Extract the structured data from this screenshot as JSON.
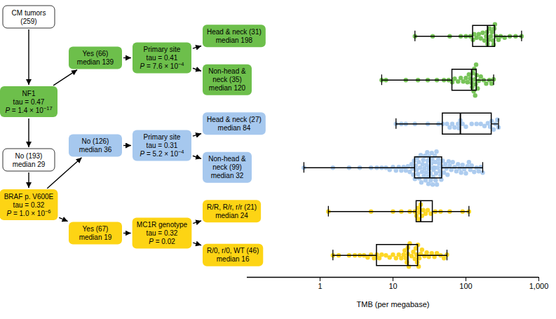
{
  "chart_data": {
    "type": "box",
    "xlabel": "TMB (per megabase)",
    "log": "x",
    "xlim": [
      0.1,
      1000
    ],
    "xticks": [
      1,
      10,
      100,
      {
        "value": 1000,
        "label": "1,000"
      }
    ],
    "tick_labels": "x",
    "tree": {
      "lines": [
        "CM tumors",
        "(259)"
      ],
      "color": "#ffffff",
      "children": [
        {
          "lines": [
            "NF1",
            "tau = 0.47",
            {
              "text": "P = 1.4 × 10",
              "sup": "−17"
            }
          ],
          "color": "#6dbf4b",
          "children": [
            {
              "lines": [
                "Yes (66)",
                "median 139"
              ],
              "color": "#6dbf4b",
              "children": [
                {
                  "lines": [
                    "Primary site",
                    "tau = 0.41",
                    {
                      "text": "P = 7.6 × 10",
                      "sup": "−4"
                    }
                  ],
                  "color": "#6dbf4b",
                  "children": [
                    {
                      "lines": [
                        "Head & neck (31)",
                        "median 198"
                      ],
                      "color": "#6dbf4b",
                      "whisker_low": 20,
                      "q1": 125,
                      "median": 198,
                      "q3": 250,
                      "whisker_high": 580,
                      "values": [
                        20,
                        35,
                        60,
                        85,
                        100,
                        115,
                        125,
                        130,
                        140,
                        150,
                        160,
                        170,
                        180,
                        190,
                        195,
                        198,
                        205,
                        212,
                        220,
                        228,
                        235,
                        240,
                        245,
                        250,
                        260,
                        280,
                        300,
                        340,
                        400,
                        480,
                        580
                      ]
                    },
                    {
                      "lines": [
                        "Non-head &",
                        "neck (35)",
                        "median 120"
                      ],
                      "color": "#6dbf4b",
                      "whisker_low": 7,
                      "q1": 65,
                      "median": 120,
                      "q3": 140,
                      "whisker_high": 240,
                      "values": [
                        7,
                        8,
                        15,
                        22,
                        30,
                        40,
                        50,
                        58,
                        65,
                        70,
                        78,
                        85,
                        92,
                        100,
                        105,
                        110,
                        115,
                        120,
                        122,
                        125,
                        128,
                        130,
                        132,
                        134,
                        136,
                        138,
                        140,
                        145,
                        150,
                        160,
                        175,
                        190,
                        210,
                        225,
                        240
                      ]
                    }
                  ]
                }
              ]
            },
            {
              "lines": [
                "No (193)",
                "median 29"
              ],
              "color": "#ffffff",
              "children": [
                {
                  "lines": [
                    "BRAF p. V600E",
                    "tau = 0.32",
                    {
                      "text": "P = 1.0 × 10",
                      "sup": "−6"
                    }
                  ],
                  "color": "#fdd414",
                  "children": [
                    {
                      "lines": [
                        "No (126)",
                        "median 36"
                      ],
                      "color": "#a6c8ee",
                      "children": [
                        {
                          "lines": [
                            "Primary site",
                            "tau = 0.31",
                            {
                              "text": "P = 5.2 × 10",
                              "sup": "−4"
                            }
                          ],
                          "color": "#a6c8ee",
                          "children": [
                            {
                              "lines": [
                                "Head & neck (27)",
                                "median 84"
                              ],
                              "color": "#a6c8ee",
                              "whisker_low": 11,
                              "q1": 48,
                              "median": 84,
                              "q3": 225,
                              "whisker_high": 280,
                              "values": [
                                11,
                                13,
                                15,
                                20,
                                30,
                                42,
                                48,
                                55,
                                60,
                                65,
                                70,
                                78,
                                80,
                                84,
                                90,
                                100,
                                120,
                                140,
                                160,
                                180,
                                200,
                                215,
                                225,
                                240,
                                255,
                                270,
                                280
                              ]
                            },
                            {
                              "lines": [
                                "Non-head &",
                                "neck (99)",
                                "median 32"
                              ],
                              "color": "#a6c8ee",
                              "whisker_low": 0.6,
                              "q1": 20,
                              "median": 32,
                              "q3": 47,
                              "whisker_high": 170,
                              "values": [
                                0.6,
                                1.5,
                                2.5,
                                3.5,
                                5,
                                6,
                                7,
                                8,
                                9,
                                10,
                                11,
                                12,
                                13,
                                14,
                                15,
                                16,
                                17,
                                18,
                                18.5,
                                19,
                                19.5,
                                20,
                                20.5,
                                21,
                                21.5,
                                22,
                                22.5,
                                23,
                                23.5,
                                24,
                                24.5,
                                25,
                                25.5,
                                26,
                                26.5,
                                27,
                                27.5,
                                28,
                                28.5,
                                29,
                                29.5,
                                30,
                                30.3,
                                30.6,
                                31,
                                31.3,
                                31.5,
                                31.7,
                                31.9,
                                32,
                                32.5,
                                33,
                                33.5,
                                34,
                                34.5,
                                35,
                                35.5,
                                36,
                                36.5,
                                37,
                                37.5,
                                38,
                                38.5,
                                39,
                                39.5,
                                40,
                                41,
                                42,
                                43,
                                44,
                                45,
                                46,
                                47,
                                48,
                                50,
                                52,
                                54,
                                56,
                                58,
                                60,
                                63,
                                66,
                                70,
                                74,
                                78,
                                82,
                                86,
                                90,
                                95,
                                100,
                                105,
                                110,
                                115,
                                120,
                                130,
                                140,
                                150,
                                160,
                                170
                              ]
                            }
                          ]
                        }
                      ]
                    },
                    {
                      "lines": [
                        "Yes (67)",
                        "median 19"
                      ],
                      "color": "#fdd414",
                      "children": [
                        {
                          "lines": [
                            "MC1R genotype",
                            "tau = 0.32",
                            "P = 0.02"
                          ],
                          "color": "#fdd414",
                          "children": [
                            {
                              "lines": [
                                "R/R, R/r, r/r (21)",
                                "median 24"
                              ],
                              "color": "#fdd414",
                              "whisker_low": 1.3,
                              "q1": 21,
                              "median": 24,
                              "q3": 35,
                              "whisker_high": 110,
                              "values": [
                                1.3,
                                5,
                                10,
                                13,
                                17,
                                20,
                                21,
                                22,
                                22.5,
                                23,
                                24,
                                25,
                                26,
                                28,
                                30,
                                33,
                                38,
                                45,
                                60,
                                90,
                                110
                              ]
                            },
                            {
                              "lines": [
                                "R/0, r/0, WT (46)",
                                "median 16"
                              ],
                              "color": "#fdd414",
                              "whisker_low": 1.5,
                              "q1": 6,
                              "median": 16,
                              "q3": 22,
                              "whisker_high": 55,
                              "values": [
                                1.5,
                                1.8,
                                2.5,
                                3,
                                3.5,
                                4,
                                4.5,
                                5,
                                5.5,
                                6,
                                6.5,
                                7,
                                8,
                                9,
                                10,
                                11,
                                12,
                                13,
                                14,
                                14.5,
                                15,
                                15.5,
                                16,
                                16,
                                16.5,
                                17,
                                18,
                                19,
                                20,
                                20.5,
                                21,
                                21.5,
                                22,
                                22.5,
                                23,
                                24,
                                25,
                                27,
                                29,
                                31,
                                34,
                                37,
                                40,
                                45,
                                50,
                                55
                              ]
                            }
                          ]
                        }
                      ]
                    }
                  ]
                }
              ]
            }
          ]
        }
      ]
    }
  }
}
